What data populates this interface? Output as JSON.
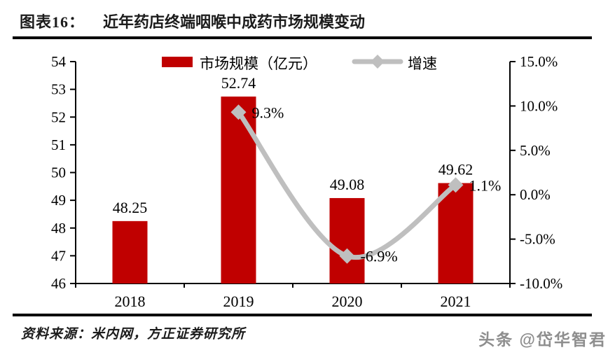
{
  "page": {
    "background": "#ffffff"
  },
  "header": {
    "figure_label": "图表16：",
    "title": "近年药店终端咽喉中成药市场规模变动"
  },
  "chart_data": {
    "type": "bar",
    "combo": "bar+line",
    "categories": [
      "2018",
      "2019",
      "2020",
      "2021"
    ],
    "series": [
      {
        "name": "市场规模（亿元）",
        "type": "bar",
        "axis": "left",
        "color": "#C00000",
        "values": [
          48.25,
          52.74,
          49.08,
          49.62
        ],
        "data_labels": [
          "48.25",
          "52.74",
          "49.08",
          "49.62"
        ]
      },
      {
        "name": "增速",
        "type": "line",
        "axis": "right",
        "color": "#BFBFBF",
        "values": [
          null,
          9.3,
          -6.9,
          1.1
        ],
        "data_labels": [
          null,
          "9.3%",
          "-6.9%",
          "1.1%"
        ]
      }
    ],
    "left_axis": {
      "min": 46,
      "max": 54,
      "step": 1,
      "tick_labels": [
        "54",
        "53",
        "52",
        "51",
        "50",
        "49",
        "48",
        "47",
        "46"
      ]
    },
    "right_axis": {
      "min": -10,
      "max": 15,
      "step": 5,
      "tick_labels": [
        "15.0%",
        "10.0%",
        "5.0%",
        "0.0%",
        "-5.0%",
        "-10.0%"
      ]
    },
    "grid": false,
    "legend_position": "top-center",
    "axis_color": "#000000",
    "label_color": "#000000"
  },
  "footer": {
    "source": "资料来源：米内网，方正证券研究所",
    "watermark": "头条 @岱华智君"
  }
}
